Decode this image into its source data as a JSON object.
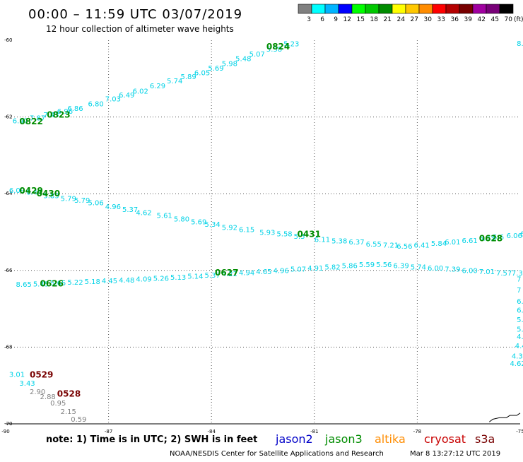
{
  "header": {
    "title": "00:00 – 11:59 UTC 03/07/2019",
    "subtitle": "12 hour collection of altimeter wave heights"
  },
  "footer": {
    "note": "note: 1) Time is in UTC; 2) SWH is in feet",
    "credit": "NOAA/NESDIS Center for Satellite Applications and Research",
    "timestamp": "Mar  8 13:27:12 UTC 2019"
  },
  "legend": {
    "unit": "(ft)",
    "colors": [
      "#808080",
      "#00ffff",
      "#00b4ff",
      "#0000ff",
      "#00ff00",
      "#00c800",
      "#008c00",
      "#ffff00",
      "#ffc800",
      "#ff8c00",
      "#ff0000",
      "#b40000",
      "#780000",
      "#a000a0",
      "#780078",
      "#000000"
    ],
    "labels": [
      "3",
      "6",
      "9",
      "12",
      "15",
      "18",
      "21",
      "24",
      "27",
      "30",
      "33",
      "36",
      "39",
      "42",
      "45",
      "70"
    ],
    "satellites": [
      {
        "name": "jason2",
        "color": "#0000c8"
      },
      {
        "name": "jason3",
        "color": "#008c00"
      },
      {
        "name": "altika",
        "color": "#ff8c00"
      },
      {
        "name": "cryosat",
        "color": "#c80000"
      },
      {
        "name": "s3a",
        "color": "#780000"
      }
    ]
  },
  "chart_data": {
    "type": "scatter",
    "title": "00:00 – 11:59 UTC 03/07/2019",
    "subtitle": "12 hour collection of altimeter wave heights",
    "xlabel": "",
    "ylabel": "",
    "xlim": [
      -90,
      -75
    ],
    "ylim": [
      -70,
      -60
    ],
    "xticks": [
      -90,
      -87,
      -84,
      -81,
      -78,
      -75
    ],
    "yticks": [
      -60,
      -62,
      -64,
      -66,
      -68,
      -70
    ],
    "grid": true,
    "colors": {
      "swh_cyan": "#00d2e6",
      "swh_gray": "#808080",
      "label_green": "#008c00",
      "label_darkred": "#780000",
      "coast": "#000000"
    },
    "points": [
      {
        "x": -89.8,
        "y": -62.09,
        "v": "6.97",
        "c": "swh_cyan"
      },
      {
        "x": -89.3,
        "y": -62.02,
        "v": "7.87",
        "c": "swh_cyan"
      },
      {
        "x": -88.9,
        "y": -61.93,
        "v": "7.43",
        "c": "swh_cyan"
      },
      {
        "x": -88.5,
        "y": -61.84,
        "v": "6.96",
        "c": "swh_cyan"
      },
      {
        "x": -88.2,
        "y": -61.77,
        "v": "6.86",
        "c": "swh_cyan"
      },
      {
        "x": -87.6,
        "y": -61.65,
        "v": "6.80",
        "c": "swh_cyan"
      },
      {
        "x": -87.1,
        "y": -61.52,
        "v": "7.03",
        "c": "swh_cyan"
      },
      {
        "x": -86.7,
        "y": -61.42,
        "v": "6.49",
        "c": "swh_cyan"
      },
      {
        "x": -86.3,
        "y": -61.32,
        "v": "6.02",
        "c": "swh_cyan"
      },
      {
        "x": -85.8,
        "y": -61.18,
        "v": "6.29",
        "c": "swh_cyan"
      },
      {
        "x": -85.3,
        "y": -61.05,
        "v": "5.74",
        "c": "swh_cyan"
      },
      {
        "x": -84.9,
        "y": -60.94,
        "v": "5.89",
        "c": "swh_cyan"
      },
      {
        "x": -84.5,
        "y": -60.84,
        "v": "6.05",
        "c": "swh_cyan"
      },
      {
        "x": -84.1,
        "y": -60.72,
        "v": "5.69",
        "c": "swh_cyan"
      },
      {
        "x": -83.7,
        "y": -60.6,
        "v": "5.98",
        "c": "swh_cyan"
      },
      {
        "x": -83.3,
        "y": -60.47,
        "v": "5.48",
        "c": "swh_cyan"
      },
      {
        "x": -82.9,
        "y": -60.35,
        "v": "5.07",
        "c": "swh_cyan"
      },
      {
        "x": -82.4,
        "y": -60.22,
        "v": "5.38",
        "c": "swh_cyan"
      },
      {
        "x": -81.9,
        "y": -60.08,
        "v": "5.23",
        "c": "swh_cyan"
      },
      {
        "x": -75.1,
        "y": -60.07,
        "v": "8.0",
        "c": "swh_cyan"
      },
      {
        "x": -89.9,
        "y": -63.9,
        "v": "6.09",
        "c": "swh_cyan"
      },
      {
        "x": -89.4,
        "y": -63.95,
        "v": "6.44",
        "c": "swh_cyan"
      },
      {
        "x": -88.9,
        "y": -64.04,
        "v": "5.83",
        "c": "swh_cyan"
      },
      {
        "x": -88.4,
        "y": -64.12,
        "v": "5.79",
        "c": "swh_cyan"
      },
      {
        "x": -88.0,
        "y": -64.16,
        "v": "5.79",
        "c": "swh_cyan"
      },
      {
        "x": -87.6,
        "y": -64.23,
        "v": "5.06",
        "c": "swh_cyan"
      },
      {
        "x": -87.1,
        "y": -64.33,
        "v": "4.96",
        "c": "swh_cyan"
      },
      {
        "x": -86.6,
        "y": -64.4,
        "v": "5.37",
        "c": "swh_cyan"
      },
      {
        "x": -86.2,
        "y": -64.48,
        "v": "4.62",
        "c": "swh_cyan"
      },
      {
        "x": -85.6,
        "y": -64.56,
        "v": "5.61",
        "c": "swh_cyan"
      },
      {
        "x": -85.1,
        "y": -64.65,
        "v": "5.80",
        "c": "swh_cyan"
      },
      {
        "x": -84.6,
        "y": -64.72,
        "v": "5.69",
        "c": "swh_cyan"
      },
      {
        "x": -84.2,
        "y": -64.79,
        "v": "5.34",
        "c": "swh_cyan"
      },
      {
        "x": -83.7,
        "y": -64.87,
        "v": "5.92",
        "c": "swh_cyan"
      },
      {
        "x": -83.2,
        "y": -64.93,
        "v": "6.15",
        "c": "swh_cyan"
      },
      {
        "x": -82.6,
        "y": -65.0,
        "v": "5.93",
        "c": "swh_cyan"
      },
      {
        "x": -82.1,
        "y": -65.04,
        "v": "5.58",
        "c": "swh_cyan"
      },
      {
        "x": -81.6,
        "y": -65.1,
        "v": "5.5",
        "c": "swh_cyan"
      },
      {
        "x": -81.0,
        "y": -65.18,
        "v": "6.11",
        "c": "swh_cyan"
      },
      {
        "x": -80.5,
        "y": -65.22,
        "v": "5.38",
        "c": "swh_cyan"
      },
      {
        "x": -80.0,
        "y": -65.25,
        "v": "6.37",
        "c": "swh_cyan"
      },
      {
        "x": -79.5,
        "y": -65.3,
        "v": "6.55",
        "c": "swh_cyan"
      },
      {
        "x": -79.0,
        "y": -65.33,
        "v": "7.21",
        "c": "swh_cyan"
      },
      {
        "x": -78.6,
        "y": -65.36,
        "v": "6.56",
        "c": "swh_cyan"
      },
      {
        "x": -78.1,
        "y": -65.33,
        "v": "6.41",
        "c": "swh_cyan"
      },
      {
        "x": -77.6,
        "y": -65.29,
        "v": "5.84",
        "c": "swh_cyan"
      },
      {
        "x": -77.2,
        "y": -65.25,
        "v": "6.01",
        "c": "swh_cyan"
      },
      {
        "x": -76.7,
        "y": -65.21,
        "v": "6.61",
        "c": "swh_cyan"
      },
      {
        "x": -76.2,
        "y": -65.15,
        "v": "6.03",
        "c": "swh_cyan"
      },
      {
        "x": -75.8,
        "y": -65.12,
        "v": "5.6",
        "c": "swh_cyan"
      },
      {
        "x": -75.4,
        "y": -65.08,
        "v": "6.06",
        "c": "swh_cyan"
      },
      {
        "x": -75.0,
        "y": -65.04,
        "v": "6.81",
        "c": "swh_cyan"
      },
      {
        "x": -89.7,
        "y": -66.35,
        "v": "8.65",
        "c": "swh_cyan"
      },
      {
        "x": -89.2,
        "y": -66.34,
        "v": "5.45",
        "c": "swh_cyan"
      },
      {
        "x": -88.7,
        "y": -66.32,
        "v": "5.65",
        "c": "swh_cyan"
      },
      {
        "x": -88.2,
        "y": -66.3,
        "v": "5.22",
        "c": "swh_cyan"
      },
      {
        "x": -87.7,
        "y": -66.28,
        "v": "5.18",
        "c": "swh_cyan"
      },
      {
        "x": -87.2,
        "y": -66.26,
        "v": "4.45",
        "c": "swh_cyan"
      },
      {
        "x": -86.7,
        "y": -66.24,
        "v": "4.48",
        "c": "swh_cyan"
      },
      {
        "x": -86.2,
        "y": -66.22,
        "v": "4.09",
        "c": "swh_cyan"
      },
      {
        "x": -85.7,
        "y": -66.2,
        "v": "5.26",
        "c": "swh_cyan"
      },
      {
        "x": -85.2,
        "y": -66.17,
        "v": "5.13",
        "c": "swh_cyan"
      },
      {
        "x": -84.7,
        "y": -66.14,
        "v": "5.14",
        "c": "swh_cyan"
      },
      {
        "x": -84.2,
        "y": -66.11,
        "v": "5.37",
        "c": "swh_cyan"
      },
      {
        "x": -83.7,
        "y": -66.08,
        "v": "4.22",
        "c": "swh_cyan"
      },
      {
        "x": -83.2,
        "y": -66.05,
        "v": "4.94",
        "c": "swh_cyan"
      },
      {
        "x": -82.7,
        "y": -66.02,
        "v": "4.65",
        "c": "swh_cyan"
      },
      {
        "x": -82.2,
        "y": -65.99,
        "v": "4.96",
        "c": "swh_cyan"
      },
      {
        "x": -81.7,
        "y": -65.96,
        "v": "5.07",
        "c": "swh_cyan"
      },
      {
        "x": -81.2,
        "y": -65.93,
        "v": "4.91",
        "c": "swh_cyan"
      },
      {
        "x": -80.7,
        "y": -65.9,
        "v": "5.82",
        "c": "swh_cyan"
      },
      {
        "x": -80.2,
        "y": -65.87,
        "v": "5.86",
        "c": "swh_cyan"
      },
      {
        "x": -79.7,
        "y": -65.84,
        "v": "5.59",
        "c": "swh_cyan"
      },
      {
        "x": -79.2,
        "y": -65.84,
        "v": "5.56",
        "c": "swh_cyan"
      },
      {
        "x": -78.7,
        "y": -65.87,
        "v": "6.39",
        "c": "swh_cyan"
      },
      {
        "x": -78.2,
        "y": -65.9,
        "v": "5.74",
        "c": "swh_cyan"
      },
      {
        "x": -77.7,
        "y": -65.93,
        "v": "6.00",
        "c": "swh_cyan"
      },
      {
        "x": -77.2,
        "y": -65.96,
        "v": "7.39",
        "c": "swh_cyan"
      },
      {
        "x": -76.7,
        "y": -65.99,
        "v": "6.00",
        "c": "swh_cyan"
      },
      {
        "x": -76.2,
        "y": -66.02,
        "v": "7.01",
        "c": "swh_cyan"
      },
      {
        "x": -75.7,
        "y": -66.06,
        "v": "7.57",
        "c": "swh_cyan"
      },
      {
        "x": -75.25,
        "y": -66.06,
        "v": "7.3",
        "c": "swh_cyan"
      },
      {
        "x": -75.1,
        "y": -66.22,
        "v": "7",
        "c": "swh_cyan"
      },
      {
        "x": -75.1,
        "y": -66.5,
        "v": "7",
        "c": "swh_cyan"
      },
      {
        "x": -75.1,
        "y": -66.8,
        "v": "6.2",
        "c": "swh_cyan"
      },
      {
        "x": -75.1,
        "y": -67.03,
        "v": "6.4",
        "c": "swh_cyan"
      },
      {
        "x": -75.1,
        "y": -67.27,
        "v": "5.46",
        "c": "swh_cyan"
      },
      {
        "x": -75.1,
        "y": -67.52,
        "v": "5.26",
        "c": "swh_cyan"
      },
      {
        "x": -75.1,
        "y": -67.72,
        "v": "4.15",
        "c": "swh_cyan"
      },
      {
        "x": -75.15,
        "y": -67.96,
        "v": "4.40",
        "c": "swh_cyan"
      },
      {
        "x": -75.25,
        "y": -68.22,
        "v": "4.34",
        "c": "swh_cyan"
      },
      {
        "x": -75.3,
        "y": -68.42,
        "v": "4.62",
        "c": "swh_cyan"
      },
      {
        "x": -89.9,
        "y": -68.7,
        "v": "3.01",
        "c": "swh_cyan"
      },
      {
        "x": -89.6,
        "y": -68.93,
        "v": "3.43",
        "c": "swh_cyan"
      },
      {
        "x": -89.3,
        "y": -69.15,
        "v": "2.90",
        "c": "swh_gray"
      },
      {
        "x": -89.0,
        "y": -69.28,
        "v": "2.88",
        "c": "swh_gray"
      },
      {
        "x": -88.7,
        "y": -69.45,
        "v": "0.95",
        "c": "swh_gray"
      },
      {
        "x": -88.4,
        "y": -69.67,
        "v": "2.15",
        "c": "swh_gray"
      },
      {
        "x": -88.1,
        "y": -69.87,
        "v": "0.59",
        "c": "swh_gray"
      }
    ],
    "pass_labels": [
      {
        "x": -82.4,
        "y": -60.15,
        "v": "0824",
        "c": "label_green"
      },
      {
        "x": -88.8,
        "y": -61.92,
        "v": "0823",
        "c": "label_green"
      },
      {
        "x": -89.6,
        "y": -62.1,
        "v": "0822",
        "c": "label_green"
      },
      {
        "x": -89.6,
        "y": -63.9,
        "v": "0429",
        "c": "label_green"
      },
      {
        "x": -89.1,
        "y": -63.98,
        "v": "0430",
        "c": "label_green"
      },
      {
        "x": -81.5,
        "y": -65.04,
        "v": "0431",
        "c": "label_green"
      },
      {
        "x": -76.2,
        "y": -65.15,
        "v": "0628",
        "c": "label_green"
      },
      {
        "x": -83.9,
        "y": -66.04,
        "v": "0627",
        "c": "label_green"
      },
      {
        "x": -89.0,
        "y": -66.33,
        "v": "0626",
        "c": "label_green"
      },
      {
        "x": -89.3,
        "y": -68.7,
        "v": "0529",
        "c": "label_darkred"
      },
      {
        "x": -88.5,
        "y": -69.2,
        "v": "0528",
        "c": "label_darkred"
      }
    ],
    "coastline": [
      [
        -75.9,
        -69.95
      ],
      [
        -75.8,
        -69.88
      ],
      [
        -75.6,
        -69.84
      ],
      [
        -75.4,
        -69.84
      ],
      [
        -75.3,
        -69.78
      ],
      [
        -75.1,
        -69.78
      ],
      [
        -75.0,
        -69.72
      ]
    ]
  }
}
